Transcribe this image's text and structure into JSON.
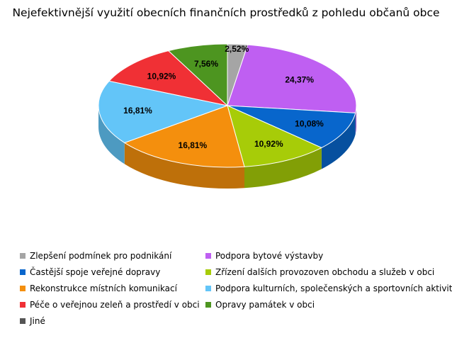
{
  "chart_data": {
    "type": "pie",
    "title": "Nejefektivnější využití obecních finančních prostředků z pohledu občanů obce",
    "units": "%",
    "slices": [
      {
        "label": "Zlepšení podmínek pro podnikání",
        "value": 2.52,
        "value_label": "2,52%",
        "color": "#a5a5a5"
      },
      {
        "label": "Podpora bytové výstavby",
        "value": 24.37,
        "value_label": "24,37%",
        "color": "#bf5ff2"
      },
      {
        "label": "Častější spoje veřejné dopravy",
        "value": 10.08,
        "value_label": "10,08%",
        "color": "#0866cc"
      },
      {
        "label": "Zřízení dalších provozoven obchodu a služeb v obci",
        "value": 10.92,
        "value_label": "10,92%",
        "color": "#a7cc08"
      },
      {
        "label": "Rekonstrukce místních komunikací",
        "value": 16.81,
        "value_label": "16,81%",
        "color": "#f48f0d"
      },
      {
        "label": "Podpora kulturních, společenských a sportovních aktivit",
        "value": 16.81,
        "value_label": "16,81%",
        "color": "#63c5f8"
      },
      {
        "label": "Péče o veřejnou zeleň a prostředí v obci",
        "value": 10.92,
        "value_label": "10,92%",
        "color": "#f03035"
      },
      {
        "label": "Opravy památek v obci",
        "value": 7.56,
        "value_label": "7,56%",
        "color": "#4d9520"
      },
      {
        "label": "Jiné",
        "value": 0,
        "value_label": "",
        "color": "#555555"
      }
    ],
    "legend_position": "bottom",
    "legend_order": [
      0,
      1,
      2,
      3,
      4,
      5,
      6,
      7,
      8
    ]
  }
}
